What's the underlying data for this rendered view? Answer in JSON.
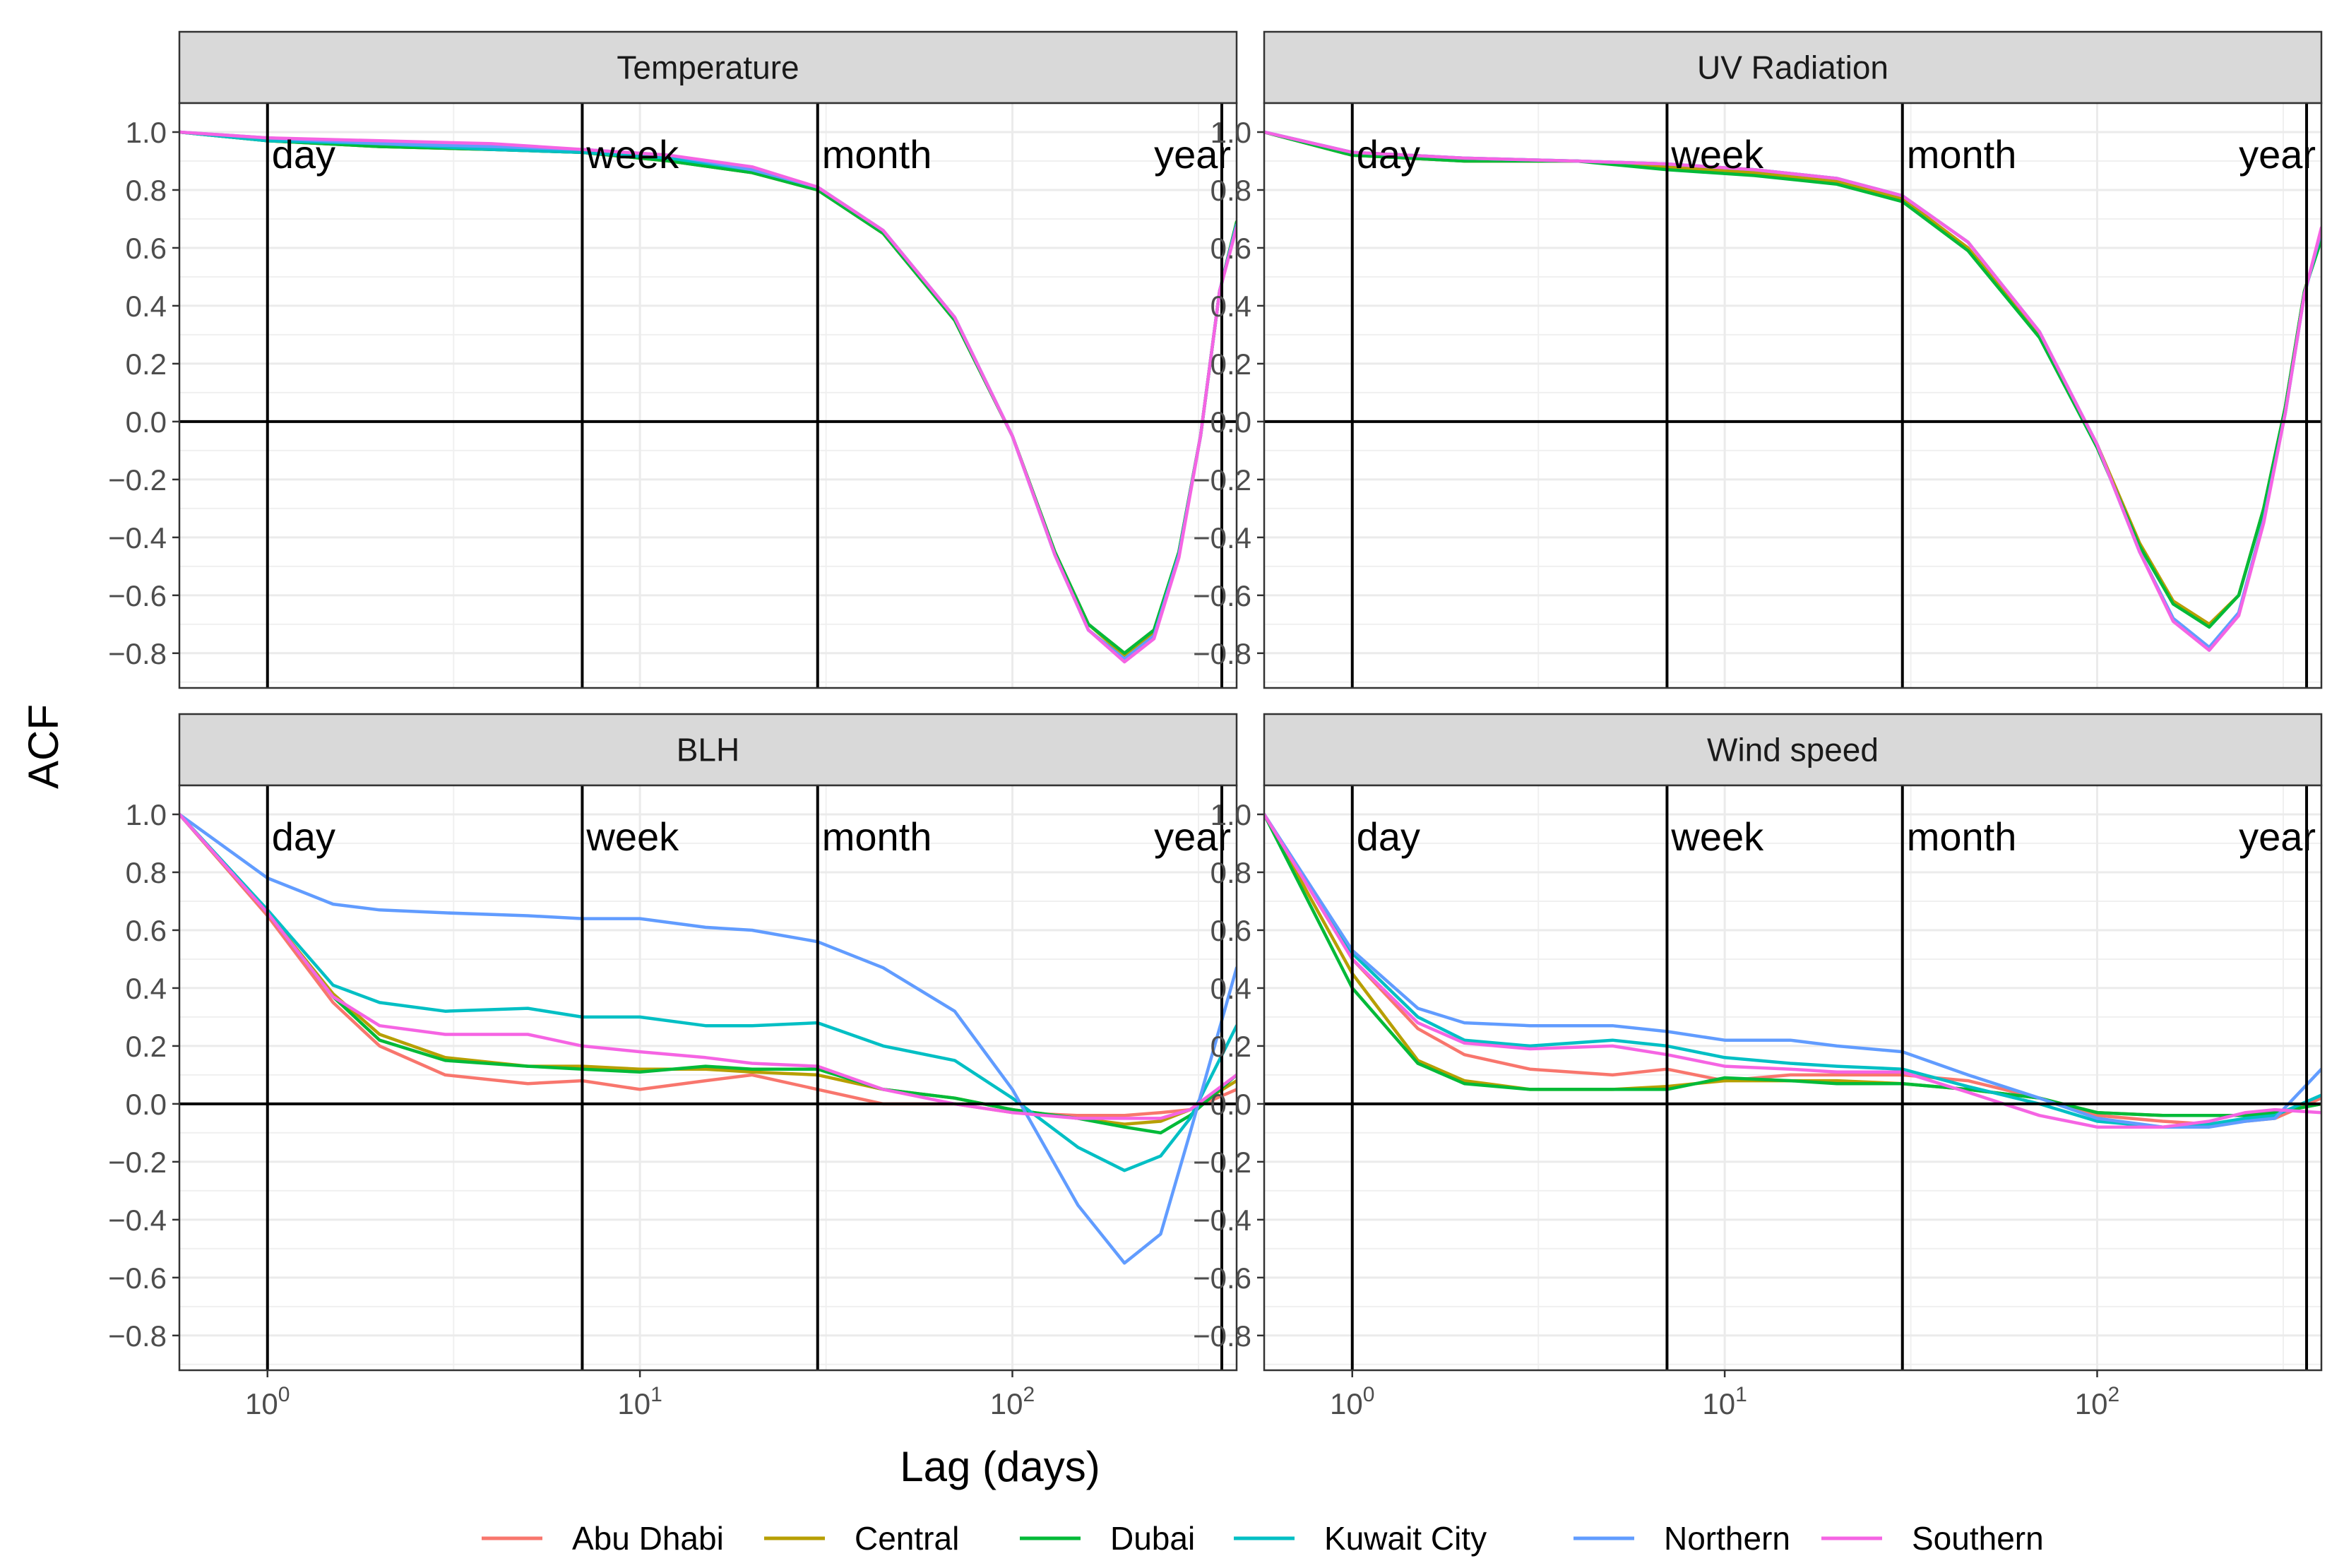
{
  "chart_data": {
    "type": "line",
    "layout": "facet-2x2",
    "xlabel": "Lag (days)",
    "ylabel": "ACF",
    "x_scale": "log10",
    "xlim": [
      0.58,
      400
    ],
    "ylim": [
      -0.92,
      1.1
    ],
    "x_ticks": [
      1,
      10,
      100
    ],
    "x_tick_labels": [
      {
        "base": "10",
        "exp": "0"
      },
      {
        "base": "10",
        "exp": "1"
      },
      {
        "base": "10",
        "exp": "2"
      }
    ],
    "y_ticks": [
      1.0,
      0.8,
      0.6,
      0.4,
      0.2,
      0.0,
      -0.2,
      -0.4,
      -0.6,
      -0.8
    ],
    "y_tick_labels": [
      "1.0",
      "0.8",
      "0.6",
      "0.4",
      "0.2",
      "0.0",
      "−0.2",
      "−0.4",
      "−0.6",
      "−0.8"
    ],
    "hline": 0,
    "reference_lines": [
      {
        "label": "day",
        "x": 1
      },
      {
        "label": "week",
        "x": 7
      },
      {
        "label": "month",
        "x": 30
      },
      {
        "label": "year",
        "x": 365
      }
    ],
    "legend": {
      "position": "bottom",
      "entries": [
        {
          "name": "Abu Dhabi",
          "color": "#F8766D"
        },
        {
          "name": "Central",
          "color": "#B79F00"
        },
        {
          "name": "Dubai",
          "color": "#00BA38"
        },
        {
          "name": "Kuwait City",
          "color": "#00BFC4"
        },
        {
          "name": "Northern",
          "color": "#619CFF"
        },
        {
          "name": "Southern",
          "color": "#F564E3"
        }
      ]
    },
    "panels": [
      {
        "title": "Temperature",
        "x": [
          0.58,
          1,
          2,
          4,
          7,
          12,
          20,
          30,
          45,
          70,
          100,
          130,
          160,
          200,
          240,
          280,
          320,
          360,
          400
        ],
        "series": [
          {
            "name": "Abu Dhabi",
            "values": [
              1.0,
              0.97,
              0.95,
              0.94,
              0.93,
              0.9,
              0.86,
              0.8,
              0.65,
              0.35,
              -0.05,
              -0.45,
              -0.7,
              -0.8,
              -0.72,
              -0.45,
              -0.05,
              0.45,
              0.69
            ]
          },
          {
            "name": "Central",
            "values": [
              1.0,
              0.97,
              0.95,
              0.94,
              0.93,
              0.9,
              0.86,
              0.8,
              0.65,
              0.35,
              -0.05,
              -0.45,
              -0.7,
              -0.81,
              -0.73,
              -0.45,
              -0.05,
              0.45,
              0.69
            ]
          },
          {
            "name": "Dubai",
            "values": [
              1.0,
              0.97,
              0.95,
              0.94,
              0.93,
              0.9,
              0.86,
              0.8,
              0.65,
              0.35,
              -0.05,
              -0.45,
              -0.7,
              -0.8,
              -0.72,
              -0.45,
              -0.05,
              0.45,
              0.69
            ]
          },
          {
            "name": "Kuwait City",
            "values": [
              1.0,
              0.97,
              0.96,
              0.94,
              0.93,
              0.91,
              0.87,
              0.81,
              0.66,
              0.36,
              -0.05,
              -0.46,
              -0.72,
              -0.82,
              -0.74,
              -0.46,
              -0.05,
              0.45,
              0.68
            ]
          },
          {
            "name": "Northern",
            "values": [
              1.0,
              0.98,
              0.96,
              0.95,
              0.94,
              0.92,
              0.87,
              0.81,
              0.66,
              0.36,
              -0.05,
              -0.46,
              -0.72,
              -0.82,
              -0.74,
              -0.46,
              -0.05,
              0.45,
              0.68
            ]
          },
          {
            "name": "Southern",
            "values": [
              1.0,
              0.98,
              0.97,
              0.96,
              0.94,
              0.92,
              0.88,
              0.81,
              0.66,
              0.36,
              -0.05,
              -0.46,
              -0.72,
              -0.83,
              -0.75,
              -0.47,
              -0.05,
              0.45,
              0.67
            ]
          }
        ]
      },
      {
        "title": "UV Radiation",
        "x": [
          0.58,
          1,
          2,
          4,
          7,
          12,
          20,
          30,
          45,
          70,
          100,
          130,
          160,
          200,
          240,
          280,
          320,
          360,
          400
        ],
        "series": [
          {
            "name": "Abu Dhabi",
            "values": [
              1.0,
              0.92,
              0.9,
              0.9,
              0.88,
              0.86,
              0.83,
              0.77,
              0.6,
              0.3,
              -0.08,
              -0.42,
              -0.62,
              -0.7,
              -0.6,
              -0.3,
              0.05,
              0.45,
              0.64
            ]
          },
          {
            "name": "Central",
            "values": [
              1.0,
              0.92,
              0.9,
              0.9,
              0.88,
              0.86,
              0.83,
              0.77,
              0.6,
              0.3,
              -0.08,
              -0.42,
              -0.62,
              -0.7,
              -0.6,
              -0.3,
              0.05,
              0.45,
              0.64
            ]
          },
          {
            "name": "Dubai",
            "values": [
              1.0,
              0.92,
              0.9,
              0.9,
              0.87,
              0.85,
              0.82,
              0.76,
              0.59,
              0.29,
              -0.09,
              -0.43,
              -0.63,
              -0.71,
              -0.6,
              -0.3,
              0.05,
              0.45,
              0.63
            ]
          },
          {
            "name": "Kuwait City",
            "values": [
              1.0,
              0.93,
              0.91,
              0.9,
              0.89,
              0.87,
              0.84,
              0.78,
              0.62,
              0.31,
              -0.08,
              -0.45,
              -0.68,
              -0.78,
              -0.66,
              -0.34,
              0.03,
              0.44,
              0.66
            ]
          },
          {
            "name": "Northern",
            "values": [
              1.0,
              0.93,
              0.91,
              0.9,
              0.89,
              0.87,
              0.84,
              0.78,
              0.62,
              0.31,
              -0.08,
              -0.45,
              -0.68,
              -0.78,
              -0.66,
              -0.34,
              0.03,
              0.44,
              0.66
            ]
          },
          {
            "name": "Southern",
            "values": [
              1.0,
              0.93,
              0.91,
              0.9,
              0.89,
              0.87,
              0.84,
              0.78,
              0.62,
              0.31,
              -0.08,
              -0.45,
              -0.69,
              -0.79,
              -0.67,
              -0.35,
              0.03,
              0.44,
              0.67
            ]
          }
        ]
      },
      {
        "title": "BLH",
        "x": [
          0.58,
          1,
          1.5,
          2,
          3,
          5,
          7,
          10,
          15,
          20,
          30,
          45,
          70,
          100,
          150,
          200,
          250,
          300,
          400
        ],
        "series": [
          {
            "name": "Abu Dhabi",
            "values": [
              1.0,
              0.65,
              0.35,
              0.2,
              0.1,
              0.07,
              0.08,
              0.05,
              0.08,
              0.1,
              0.05,
              0.0,
              0.0,
              -0.03,
              -0.04,
              -0.04,
              -0.03,
              -0.02,
              0.05
            ]
          },
          {
            "name": "Central",
            "values": [
              1.0,
              0.66,
              0.38,
              0.24,
              0.16,
              0.13,
              0.13,
              0.12,
              0.12,
              0.11,
              0.1,
              0.05,
              0.02,
              -0.02,
              -0.05,
              -0.07,
              -0.06,
              -0.02,
              0.08
            ]
          },
          {
            "name": "Dubai",
            "values": [
              1.0,
              0.66,
              0.37,
              0.22,
              0.15,
              0.13,
              0.12,
              0.11,
              0.13,
              0.12,
              0.12,
              0.05,
              0.02,
              -0.02,
              -0.05,
              -0.08,
              -0.1,
              -0.04,
              0.1
            ]
          },
          {
            "name": "Kuwait City",
            "values": [
              1.0,
              0.67,
              0.41,
              0.35,
              0.32,
              0.33,
              0.3,
              0.3,
              0.27,
              0.27,
              0.28,
              0.2,
              0.15,
              0.02,
              -0.15,
              -0.23,
              -0.18,
              -0.05,
              0.27
            ]
          },
          {
            "name": "Northern",
            "values": [
              1.0,
              0.78,
              0.69,
              0.67,
              0.66,
              0.65,
              0.64,
              0.64,
              0.61,
              0.6,
              0.56,
              0.47,
              0.32,
              0.05,
              -0.35,
              -0.55,
              -0.45,
              -0.1,
              0.47
            ]
          },
          {
            "name": "Southern",
            "values": [
              1.0,
              0.66,
              0.37,
              0.27,
              0.24,
              0.24,
              0.2,
              0.18,
              0.16,
              0.14,
              0.13,
              0.05,
              0.0,
              -0.03,
              -0.05,
              -0.05,
              -0.05,
              -0.02,
              0.1
            ]
          }
        ]
      },
      {
        "title": "Wind speed",
        "x": [
          0.58,
          1,
          1.5,
          2,
          3,
          5,
          7,
          10,
          15,
          20,
          30,
          45,
          70,
          100,
          150,
          200,
          250,
          300,
          400
        ],
        "series": [
          {
            "name": "Abu Dhabi",
            "values": [
              1.0,
              0.5,
              0.26,
              0.17,
              0.12,
              0.1,
              0.12,
              0.08,
              0.1,
              0.1,
              0.1,
              0.08,
              0.02,
              -0.04,
              -0.06,
              -0.07,
              -0.06,
              -0.05,
              0.02
            ]
          },
          {
            "name": "Central",
            "values": [
              1.0,
              0.45,
              0.15,
              0.08,
              0.05,
              0.05,
              0.06,
              0.08,
              0.08,
              0.08,
              0.07,
              0.05,
              0.02,
              -0.03,
              -0.04,
              -0.04,
              -0.04,
              -0.03,
              0.0
            ]
          },
          {
            "name": "Dubai",
            "values": [
              1.0,
              0.4,
              0.14,
              0.07,
              0.05,
              0.05,
              0.05,
              0.09,
              0.08,
              0.07,
              0.07,
              0.05,
              0.02,
              -0.03,
              -0.04,
              -0.04,
              -0.04,
              -0.03,
              0.0
            ]
          },
          {
            "name": "Kuwait City",
            "values": [
              1.0,
              0.52,
              0.3,
              0.22,
              0.2,
              0.22,
              0.2,
              0.16,
              0.14,
              0.13,
              0.12,
              0.06,
              0.0,
              -0.06,
              -0.08,
              -0.07,
              -0.05,
              -0.04,
              0.03
            ]
          },
          {
            "name": "Northern",
            "values": [
              1.0,
              0.53,
              0.33,
              0.28,
              0.27,
              0.27,
              0.25,
              0.22,
              0.22,
              0.2,
              0.18,
              0.1,
              0.02,
              -0.05,
              -0.08,
              -0.08,
              -0.06,
              -0.05,
              0.12
            ]
          },
          {
            "name": "Southern",
            "values": [
              1.0,
              0.5,
              0.28,
              0.21,
              0.19,
              0.2,
              0.17,
              0.13,
              0.12,
              0.11,
              0.11,
              0.04,
              -0.04,
              -0.08,
              -0.08,
              -0.06,
              -0.03,
              -0.02,
              -0.03
            ]
          }
        ]
      }
    ]
  }
}
